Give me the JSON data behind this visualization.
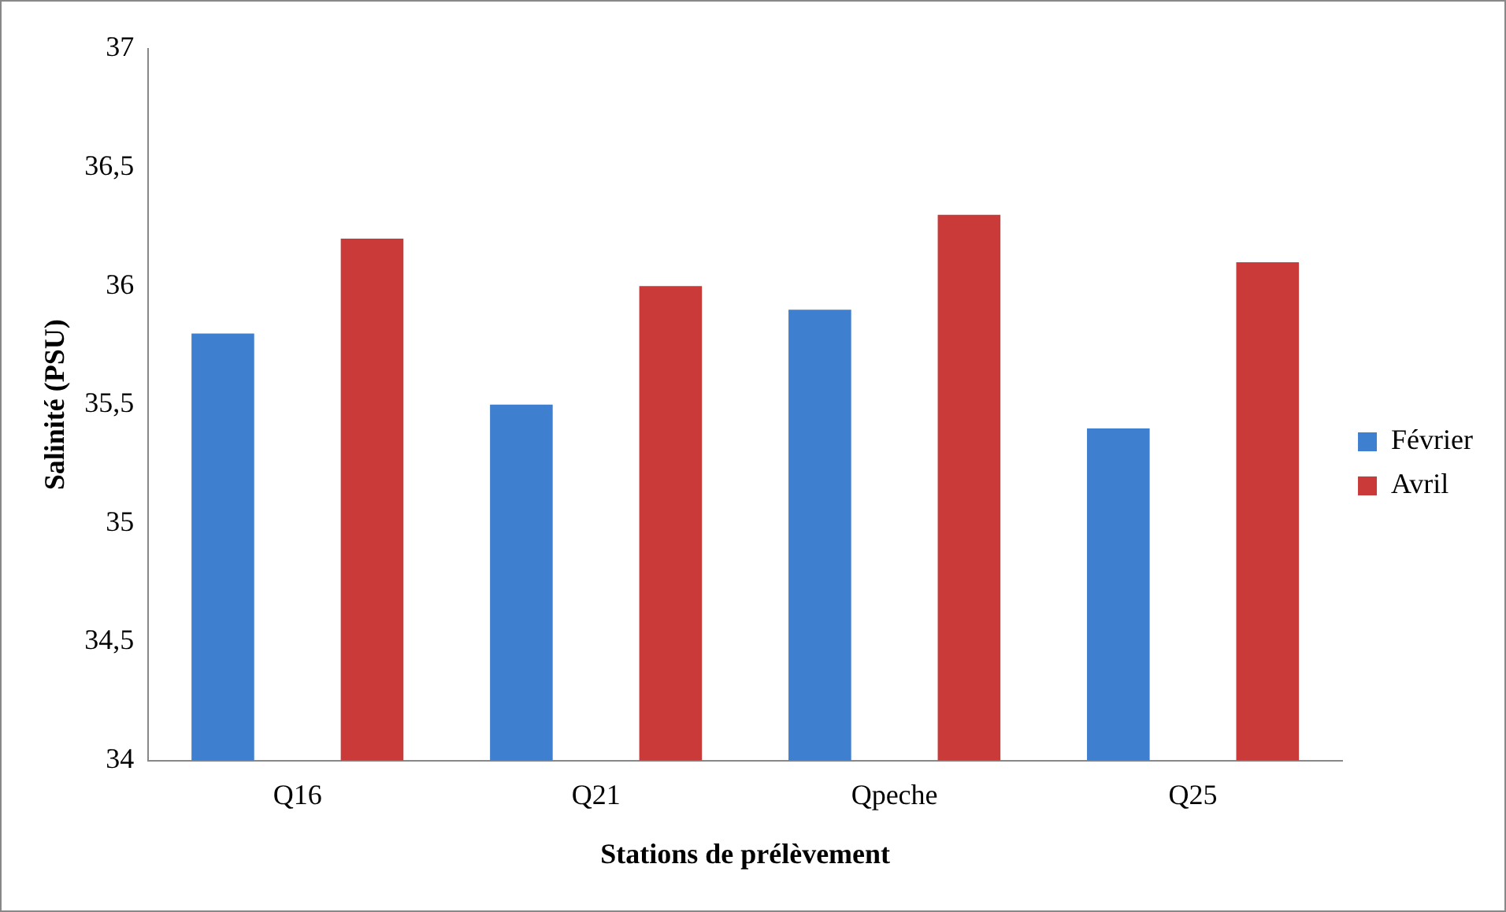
{
  "chart_data": {
    "type": "bar",
    "xlabel": "Stations de prélèvement",
    "ylabel": "Salinité (PSU)",
    "categories": [
      "Q16",
      "Q21",
      "Qpeche",
      "Q25"
    ],
    "series": [
      {
        "name": "Février",
        "color": "#3f7fcf",
        "values": [
          35.8,
          35.5,
          35.9,
          35.4
        ]
      },
      {
        "name": "Avril",
        "color": "#c93a38",
        "values": [
          36.2,
          36.0,
          36.3,
          36.1
        ]
      }
    ],
    "ylim": [
      34,
      37
    ],
    "yticks": [
      34,
      {
        "value": 34.5,
        "label": "34,5"
      },
      35,
      {
        "value": 35.5,
        "label": "35,5"
      },
      36,
      {
        "value": 36.5,
        "label": "36,5"
      },
      37
    ],
    "grid": false,
    "legend": "right"
  }
}
